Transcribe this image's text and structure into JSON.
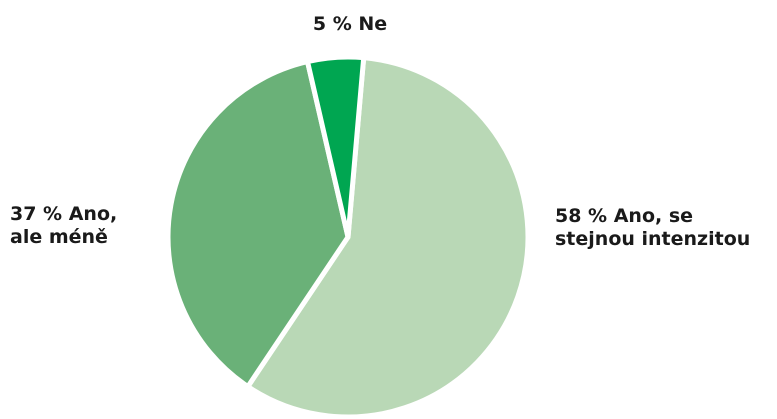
{
  "chart_data": {
    "type": "pie",
    "slices": [
      {
        "value": 58,
        "label_lines": [
          "58 % Ano, se",
          "stejnou intenzitou"
        ],
        "color": "#b9d8b6"
      },
      {
        "value": 37,
        "label_lines": [
          "37 % Ano,",
          "ale méně"
        ],
        "color": "#6ab178"
      },
      {
        "value": 5,
        "label_lines": [
          "5 % Ne"
        ],
        "color": "#00a651"
      }
    ],
    "start_angle_deg": 5,
    "direction": "clockwise",
    "separator_color": "#ffffff",
    "legend": "none"
  }
}
